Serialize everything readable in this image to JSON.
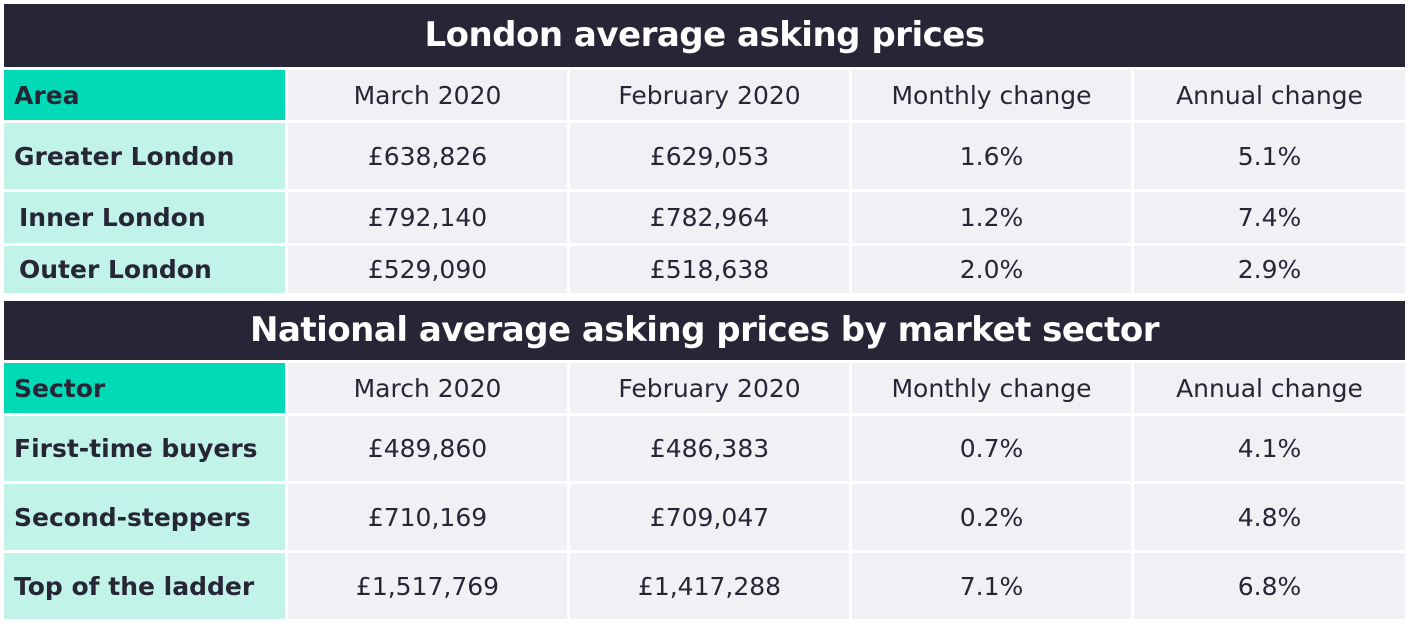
{
  "london": {
    "title": "London average asking prices",
    "headers": [
      "Area",
      "March 2020",
      "February 2020",
      "Monthly change",
      "Annual change"
    ],
    "rows": [
      [
        "Greater London",
        "£638,826",
        "£629,053",
        "1.6%",
        "5.1%"
      ],
      [
        "Inner London",
        "£792,140",
        "£782,964",
        "1.2%",
        "7.4%"
      ],
      [
        "Outer London",
        "£529,090",
        "£518,638",
        "2.0%",
        "2.9%"
      ]
    ]
  },
  "national": {
    "title": "National average asking prices by market sector",
    "headers": [
      "Sector",
      "March 2020",
      "February 2020",
      "Monthly change",
      "Annual change"
    ],
    "rows": [
      [
        "First-time buyers",
        "£489,860",
        "£486,383",
        "0.7%",
        "4.1%"
      ],
      [
        "Second-steppers",
        "£710,169",
        "£709,047",
        "0.2%",
        "4.8%"
      ],
      [
        "Top of the ladder",
        "£1,517,769",
        "£1,417,288",
        "7.1%",
        "6.8%"
      ]
    ]
  },
  "colors": {
    "title_bg": "#262637",
    "header_accent": "#00dab7",
    "label_bg": "#c2f3e8",
    "cell_bg": "#f1f1f5"
  }
}
